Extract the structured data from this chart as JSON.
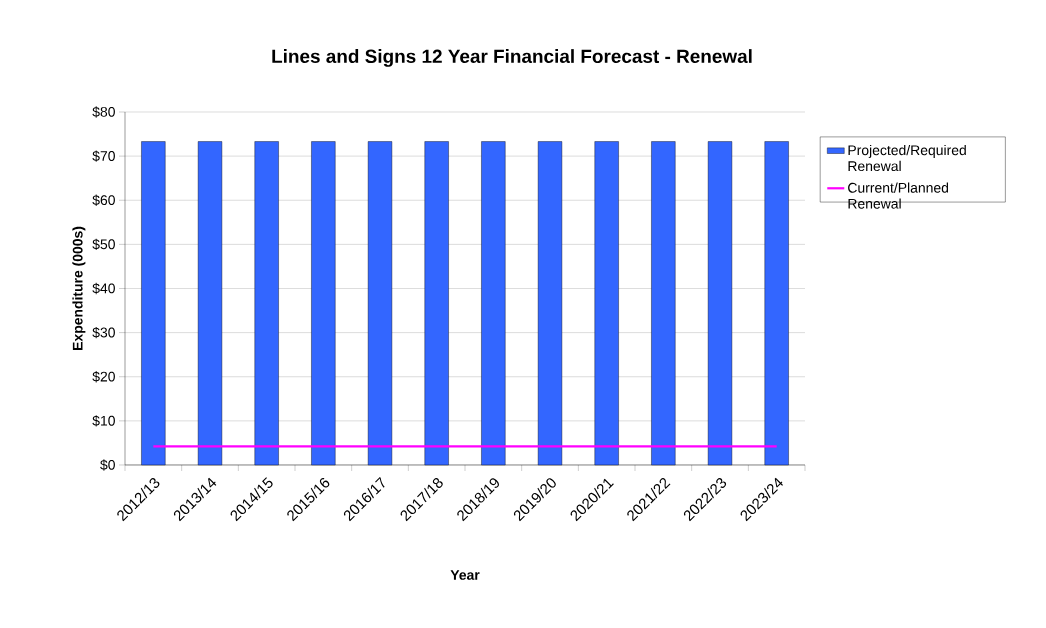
{
  "chart_data": {
    "type": "bar",
    "title": "Lines and Signs 12 Year Financial Forecast - Renewal",
    "xlabel": "Year",
    "ylabel": "Expenditure (000s)",
    "categories": [
      "2012/13",
      "2013/14",
      "2014/15",
      "2015/16",
      "2016/17",
      "2017/18",
      "2018/19",
      "2019/20",
      "2020/21",
      "2021/22",
      "2022/23",
      "2023/24"
    ],
    "series": [
      {
        "name": "Projected/Required Renewal",
        "color": "#3366ff",
        "values": [
          73.3,
          73.3,
          73.3,
          73.3,
          73.3,
          73.3,
          73.3,
          73.3,
          73.3,
          73.3,
          73.3,
          73.3
        ]
      },
      {
        "name": "Current/Planned Renewal",
        "type": "line",
        "color": "#ff00ff",
        "values": [
          4.2,
          4.2,
          4.2,
          4.2,
          4.2,
          4.2,
          4.2,
          4.2,
          4.2,
          4.2,
          4.2,
          4.2
        ]
      }
    ],
    "ylim": [
      0,
      80
    ],
    "yticks": [
      {
        "value": 0,
        "label": "$0"
      },
      {
        "value": 10,
        "label": "$10"
      },
      {
        "value": 20,
        "label": "$20"
      },
      {
        "value": 30,
        "label": "$30"
      },
      {
        "value": 40,
        "label": "$40"
      },
      {
        "value": 50,
        "label": "$50"
      },
      {
        "value": 60,
        "label": "$60"
      },
      {
        "value": 70,
        "label": "$70"
      },
      {
        "value": 80,
        "label": "$80"
      }
    ],
    "grid": "y",
    "legend": "right"
  }
}
